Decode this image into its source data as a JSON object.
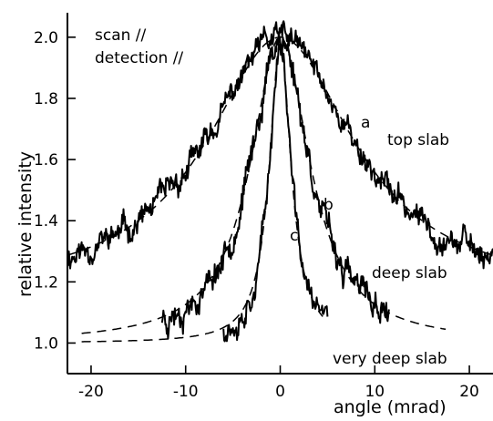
{
  "chart_data": {
    "type": "line",
    "title": "",
    "xlabel": "angle (mrad)",
    "ylabel": "relative intensity",
    "xlim": [
      -22.5,
      22.5
    ],
    "ylim": [
      0.9,
      2.08
    ],
    "x_ticks": [
      -20,
      -10,
      0,
      10,
      20
    ],
    "x_tick_labels": [
      "-20",
      "-10",
      "0",
      "10",
      "20"
    ],
    "y_ticks": [
      1.0,
      1.2,
      1.4,
      1.6,
      1.8,
      2.0
    ],
    "y_tick_labels": [
      "1.0",
      "1.2",
      "1.4",
      "1.6",
      "1.8",
      "2.0"
    ],
    "grid": false,
    "annotations": {
      "top_left_line1": "scan //",
      "top_left_line2": "detection //"
    },
    "series": [
      {
        "name": "top slab",
        "letter": "a",
        "x_range": [
          -22.5,
          22.5
        ],
        "fit": {
          "shape": "lorentzian",
          "center": 0,
          "baseline": 1.16,
          "peak": 2.0,
          "hwhm": 9.5
        },
        "noise": 0.045,
        "seed": 11
      },
      {
        "name": "deep slab",
        "letter": "b",
        "x_range": [
          -12.5,
          11.5
        ],
        "fit_range": [
          -21.0,
          17.5
        ],
        "fit": {
          "shape": "lorentzian",
          "center": 0,
          "baseline": 1.0,
          "peak": 2.0,
          "hwhm": 3.8
        },
        "noise": 0.05,
        "seed": 23
      },
      {
        "name": "very deep slab",
        "letter": "c",
        "x_range": [
          -6.0,
          5.0
        ],
        "fit_range": [
          -21.0,
          4.5
        ],
        "fit": {
          "shape": "lorentzian",
          "center": 0,
          "baseline": 1.0,
          "peak": 1.98,
          "hwhm": 1.4
        },
        "noise": 0.045,
        "seed": 37
      }
    ]
  }
}
